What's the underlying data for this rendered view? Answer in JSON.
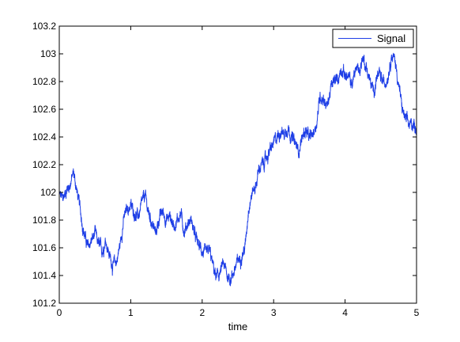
{
  "chart_data": {
    "type": "line",
    "title": "",
    "xlabel": "time",
    "ylabel": "",
    "xlim": [
      0,
      5
    ],
    "ylim": [
      101.2,
      103.2
    ],
    "xticks": [
      "0",
      "1",
      "2",
      "3",
      "4",
      "5"
    ],
    "yticks": [
      "101.2",
      "101.4",
      "101.6",
      "101.8",
      "102",
      "102.2",
      "102.4",
      "102.6",
      "102.8",
      "103",
      "103.2"
    ],
    "grid": false,
    "legend_position": "top-right",
    "line_color": "#1f3fe6",
    "series": [
      {
        "name": "Signal",
        "x": [
          0,
          0.05,
          0.1,
          0.15,
          0.2,
          0.25,
          0.3,
          0.35,
          0.4,
          0.45,
          0.5,
          0.55,
          0.6,
          0.65,
          0.7,
          0.75,
          0.8,
          0.85,
          0.9,
          0.95,
          1.0,
          1.05,
          1.1,
          1.15,
          1.2,
          1.25,
          1.3,
          1.35,
          1.4,
          1.45,
          1.5,
          1.55,
          1.6,
          1.65,
          1.7,
          1.75,
          1.8,
          1.85,
          1.9,
          1.95,
          2.0,
          2.05,
          2.1,
          2.15,
          2.2,
          2.25,
          2.3,
          2.35,
          2.4,
          2.45,
          2.5,
          2.55,
          2.6,
          2.65,
          2.7,
          2.75,
          2.8,
          2.85,
          2.9,
          2.95,
          3.0,
          3.05,
          3.1,
          3.15,
          3.2,
          3.25,
          3.3,
          3.35,
          3.4,
          3.45,
          3.5,
          3.55,
          3.6,
          3.65,
          3.7,
          3.75,
          3.8,
          3.85,
          3.9,
          3.95,
          4.0,
          4.05,
          4.1,
          4.15,
          4.2,
          4.25,
          4.3,
          4.35,
          4.4,
          4.45,
          4.5,
          4.55,
          4.6,
          4.65,
          4.7,
          4.75,
          4.8,
          4.85,
          4.9,
          4.95,
          5.0
        ],
        "values": [
          101.98,
          101.95,
          102.02,
          102.06,
          102.14,
          102.0,
          101.85,
          101.7,
          101.6,
          101.65,
          101.7,
          101.62,
          101.58,
          101.66,
          101.55,
          101.47,
          101.5,
          101.62,
          101.8,
          101.88,
          101.9,
          101.86,
          101.82,
          101.9,
          101.98,
          101.85,
          101.78,
          101.7,
          101.82,
          101.86,
          101.8,
          101.83,
          101.76,
          101.8,
          101.85,
          101.72,
          101.78,
          101.8,
          101.68,
          101.62,
          101.58,
          101.54,
          101.58,
          101.47,
          101.38,
          101.42,
          101.48,
          101.4,
          101.38,
          101.44,
          101.5,
          101.55,
          101.6,
          101.9,
          102.0,
          102.05,
          102.18,
          102.2,
          102.25,
          102.3,
          102.35,
          102.4,
          102.45,
          102.42,
          102.48,
          102.4,
          102.35,
          102.3,
          102.4,
          102.45,
          102.38,
          102.42,
          102.5,
          102.7,
          102.68,
          102.62,
          102.75,
          102.8,
          102.82,
          102.9,
          102.85,
          102.82,
          102.78,
          102.9,
          102.88,
          102.98,
          102.9,
          102.8,
          102.72,
          102.85,
          102.82,
          102.78,
          102.85,
          103.0,
          102.95,
          102.78,
          102.6,
          102.52,
          102.48,
          102.5,
          102.46
        ]
      }
    ]
  }
}
